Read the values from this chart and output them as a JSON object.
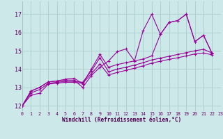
{
  "xlabel": "Windchill (Refroidissement éolien,°C)",
  "background_color": "#cce8e8",
  "grid_color": "#aacccc",
  "line_color": "#990099",
  "xlim": [
    0,
    23
  ],
  "ylim": [
    11.7,
    17.7
  ],
  "yticks": [
    12,
    13,
    14,
    15,
    16,
    17
  ],
  "xticks": [
    0,
    1,
    2,
    3,
    4,
    5,
    6,
    7,
    8,
    9,
    10,
    11,
    12,
    13,
    14,
    15,
    16,
    17,
    18,
    19,
    20,
    21,
    22,
    23
  ],
  "series": [
    [
      12.0,
      12.8,
      13.0,
      13.3,
      13.35,
      13.4,
      13.4,
      13.0,
      13.65,
      14.1,
      14.45,
      14.95,
      15.1,
      14.45,
      16.1,
      17.0,
      15.9,
      16.55,
      16.65,
      17.0,
      15.5,
      15.85,
      14.85
    ],
    [
      12.0,
      12.8,
      13.0,
      13.3,
      13.35,
      13.45,
      13.5,
      13.2,
      14.0,
      14.8,
      14.1,
      14.25,
      14.35,
      14.45,
      14.55,
      14.72,
      15.9,
      16.55,
      16.65,
      17.0,
      15.5,
      15.85,
      14.85
    ],
    [
      12.0,
      12.7,
      12.88,
      13.22,
      13.28,
      13.33,
      13.33,
      13.28,
      13.9,
      14.62,
      13.85,
      14.0,
      14.1,
      14.22,
      14.35,
      14.5,
      14.6,
      14.7,
      14.8,
      14.9,
      15.0,
      15.08,
      14.88
    ],
    [
      12.0,
      12.58,
      12.68,
      13.18,
      13.23,
      13.28,
      13.28,
      13.22,
      13.75,
      14.28,
      13.68,
      13.82,
      13.93,
      14.05,
      14.18,
      14.33,
      14.43,
      14.53,
      14.62,
      14.72,
      14.83,
      14.88,
      14.78
    ]
  ]
}
